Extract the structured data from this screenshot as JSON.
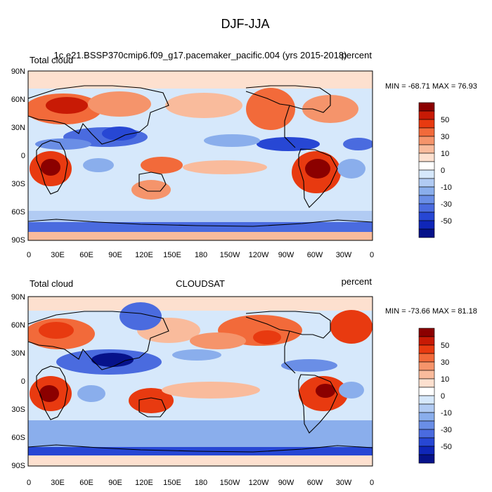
{
  "figure": {
    "title": "DJF-JJA"
  },
  "panels": [
    {
      "left_label": "Total cloud",
      "center_label": "1c.e21.BSSP370cmip6.f09_g17.pacemaker_pacific.004 (yrs 2015-2018)",
      "right_label": "percent",
      "stats": "MIN = -68.71 MAX =  76.93"
    },
    {
      "left_label": "Total cloud",
      "center_label": "CLOUDSAT",
      "right_label": "percent",
      "stats": "MIN = -73.66 MAX =  81.18"
    }
  ],
  "axes": {
    "lat_ticks": [
      "90N",
      "60N",
      "30N",
      "0",
      "30S",
      "60S",
      "90S"
    ],
    "lon_ticks": [
      "0",
      "30E",
      "60E",
      "90E",
      "120E",
      "150E",
      "180",
      "150W",
      "120W",
      "90W",
      "60W",
      "30W",
      "0"
    ]
  },
  "colorbar": {
    "labels": [
      "50",
      "30",
      "10",
      "0",
      "-10",
      "-30",
      "-50"
    ],
    "colors": [
      "#8b0000",
      "#c81a05",
      "#e83a10",
      "#f26a3a",
      "#f5946b",
      "#f9bb9c",
      "#fde0cf",
      "#ffffff",
      "#d6e8fb",
      "#b1cbf3",
      "#8aaeec",
      "#6a8ee6",
      "#4a6bdf",
      "#2747d4",
      "#0f26b8",
      "#06128a"
    ]
  },
  "map_data": {
    "panel_1": {
      "positive_regions": [
        "Southern Africa",
        "South America",
        "North Africa",
        "Europe",
        "Central Asia",
        "North America",
        "Australia"
      ],
      "negative_regions": [
        "South Asia",
        "Southeast Asia",
        "Central America",
        "Antarctic coast",
        "Southern Ocean"
      ]
    },
    "panel_2": {
      "positive_regions": [
        "Southern Africa",
        "South America",
        "Australia",
        "North Africa",
        "Europe",
        "North America"
      ],
      "negative_regions": [
        "South Asia",
        "Southeast Asia",
        "North Pacific",
        "Antarctic coast"
      ]
    }
  }
}
